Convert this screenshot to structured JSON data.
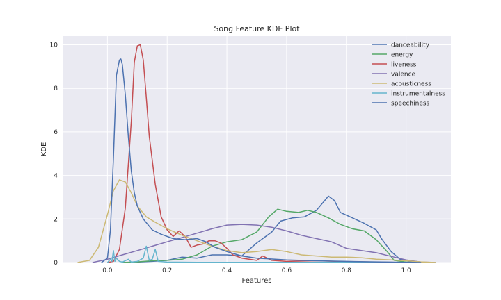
{
  "chart_data": {
    "type": "line",
    "title": "Song Feature KDE Plot",
    "xlabel": "Features",
    "ylabel": "KDE",
    "xlim": [
      -0.15,
      1.15
    ],
    "ylim": [
      0,
      10.4
    ],
    "xticks": [
      0.0,
      0.2,
      0.4,
      0.6,
      0.8,
      1.0
    ],
    "xtick_labels": [
      "0.0",
      "0.2",
      "0.4",
      "0.6",
      "0.8",
      "1.0"
    ],
    "yticks": [
      0,
      2,
      4,
      6,
      8,
      10
    ],
    "ytick_labels": [
      "0",
      "2",
      "4",
      "6",
      "8",
      "10"
    ],
    "grid": true,
    "legend_position": "top-right",
    "background": "#eaeaf2",
    "series": [
      {
        "name": "danceability",
        "color": "#4c72b0",
        "points": [
          [
            0.05,
            0
          ],
          [
            0.1,
            0.02
          ],
          [
            0.15,
            0.05
          ],
          [
            0.2,
            0.1
          ],
          [
            0.25,
            0.25
          ],
          [
            0.3,
            0.2
          ],
          [
            0.35,
            0.35
          ],
          [
            0.4,
            0.35
          ],
          [
            0.45,
            0.3
          ],
          [
            0.5,
            0.9
          ],
          [
            0.55,
            1.4
          ],
          [
            0.58,
            1.9
          ],
          [
            0.62,
            2.05
          ],
          [
            0.66,
            2.1
          ],
          [
            0.7,
            2.4
          ],
          [
            0.74,
            3.05
          ],
          [
            0.76,
            2.85
          ],
          [
            0.78,
            2.3
          ],
          [
            0.82,
            2.05
          ],
          [
            0.86,
            1.8
          ],
          [
            0.9,
            1.5
          ],
          [
            0.92,
            1.05
          ],
          [
            0.95,
            0.5
          ],
          [
            0.98,
            0.15
          ],
          [
            1.02,
            0.02
          ],
          [
            1.05,
            0
          ]
        ]
      },
      {
        "name": "energy",
        "color": "#55a868",
        "points": [
          [
            0.05,
            0
          ],
          [
            0.1,
            0.03
          ],
          [
            0.15,
            0.08
          ],
          [
            0.2,
            0.1
          ],
          [
            0.25,
            0.15
          ],
          [
            0.3,
            0.35
          ],
          [
            0.35,
            0.75
          ],
          [
            0.4,
            0.95
          ],
          [
            0.45,
            1.05
          ],
          [
            0.5,
            1.4
          ],
          [
            0.54,
            2.1
          ],
          [
            0.57,
            2.45
          ],
          [
            0.6,
            2.35
          ],
          [
            0.64,
            2.3
          ],
          [
            0.67,
            2.4
          ],
          [
            0.7,
            2.3
          ],
          [
            0.74,
            2.05
          ],
          [
            0.78,
            1.75
          ],
          [
            0.82,
            1.55
          ],
          [
            0.86,
            1.45
          ],
          [
            0.9,
            1.05
          ],
          [
            0.94,
            0.45
          ],
          [
            0.96,
            0.1
          ],
          [
            1.0,
            0.02
          ],
          [
            1.02,
            0
          ]
        ]
      },
      {
        "name": "liveness",
        "color": "#c44e52",
        "points": [
          [
            0.0,
            0
          ],
          [
            0.02,
            0.05
          ],
          [
            0.04,
            0.6
          ],
          [
            0.06,
            2.5
          ],
          [
            0.08,
            6.5
          ],
          [
            0.09,
            9.2
          ],
          [
            0.1,
            9.95
          ],
          [
            0.11,
            10.0
          ],
          [
            0.12,
            9.3
          ],
          [
            0.13,
            7.6
          ],
          [
            0.14,
            5.8
          ],
          [
            0.16,
            3.6
          ],
          [
            0.18,
            2.1
          ],
          [
            0.2,
            1.5
          ],
          [
            0.22,
            1.2
          ],
          [
            0.24,
            1.45
          ],
          [
            0.26,
            1.2
          ],
          [
            0.28,
            0.7
          ],
          [
            0.3,
            0.8
          ],
          [
            0.32,
            0.85
          ],
          [
            0.34,
            1.0
          ],
          [
            0.36,
            1.0
          ],
          [
            0.38,
            0.9
          ],
          [
            0.4,
            0.65
          ],
          [
            0.42,
            0.35
          ],
          [
            0.45,
            0.2
          ],
          [
            0.5,
            0.1
          ],
          [
            0.52,
            0.3
          ],
          [
            0.55,
            0.1
          ],
          [
            0.6,
            0.05
          ],
          [
            0.7,
            0.08
          ],
          [
            0.8,
            0.04
          ],
          [
            0.9,
            0.02
          ],
          [
            1.0,
            0
          ]
        ]
      },
      {
        "name": "valence",
        "color": "#8172b2",
        "points": [
          [
            -0.05,
            0
          ],
          [
            0.0,
            0.15
          ],
          [
            0.05,
            0.35
          ],
          [
            0.1,
            0.55
          ],
          [
            0.15,
            0.75
          ],
          [
            0.2,
            0.95
          ],
          [
            0.25,
            1.15
          ],
          [
            0.3,
            1.35
          ],
          [
            0.35,
            1.55
          ],
          [
            0.4,
            1.72
          ],
          [
            0.45,
            1.75
          ],
          [
            0.5,
            1.72
          ],
          [
            0.55,
            1.62
          ],
          [
            0.6,
            1.45
          ],
          [
            0.65,
            1.25
          ],
          [
            0.7,
            1.1
          ],
          [
            0.75,
            0.95
          ],
          [
            0.8,
            0.65
          ],
          [
            0.85,
            0.55
          ],
          [
            0.9,
            0.45
          ],
          [
            0.95,
            0.28
          ],
          [
            1.0,
            0.12
          ],
          [
            1.05,
            0.02
          ],
          [
            1.1,
            0
          ]
        ]
      },
      {
        "name": "acousticness",
        "color": "#ccb974",
        "points": [
          [
            -0.1,
            0
          ],
          [
            -0.06,
            0.1
          ],
          [
            -0.03,
            0.7
          ],
          [
            0.0,
            2.2
          ],
          [
            0.02,
            3.3
          ],
          [
            0.04,
            3.8
          ],
          [
            0.06,
            3.7
          ],
          [
            0.08,
            3.2
          ],
          [
            0.1,
            2.6
          ],
          [
            0.13,
            2.1
          ],
          [
            0.16,
            1.85
          ],
          [
            0.2,
            1.55
          ],
          [
            0.25,
            1.25
          ],
          [
            0.3,
            1.0
          ],
          [
            0.35,
            0.75
          ],
          [
            0.4,
            0.55
          ],
          [
            0.45,
            0.45
          ],
          [
            0.5,
            0.5
          ],
          [
            0.55,
            0.6
          ],
          [
            0.6,
            0.5
          ],
          [
            0.65,
            0.35
          ],
          [
            0.7,
            0.3
          ],
          [
            0.75,
            0.25
          ],
          [
            0.8,
            0.25
          ],
          [
            0.85,
            0.22
          ],
          [
            0.9,
            0.15
          ],
          [
            0.95,
            0.12
          ],
          [
            1.0,
            0.08
          ],
          [
            1.05,
            0.03
          ],
          [
            1.1,
            0
          ]
        ]
      },
      {
        "name": "instrumentalness",
        "color": "#64b5cd",
        "points": [
          [
            0.0,
            0
          ],
          [
            0.01,
            0.15
          ],
          [
            0.015,
            0.05
          ],
          [
            0.02,
            0.55
          ],
          [
            0.025,
            0.05
          ],
          [
            0.03,
            0.2
          ],
          [
            0.04,
            0.05
          ],
          [
            0.05,
            0.02
          ],
          [
            0.07,
            0.15
          ],
          [
            0.08,
            0.02
          ],
          [
            0.1,
            0.05
          ],
          [
            0.12,
            0.2
          ],
          [
            0.13,
            0.75
          ],
          [
            0.14,
            0.1
          ],
          [
            0.15,
            0.15
          ],
          [
            0.16,
            0.6
          ],
          [
            0.17,
            0.05
          ],
          [
            0.2,
            0.02
          ],
          [
            0.3,
            0.01
          ],
          [
            0.5,
            0.01
          ],
          [
            0.7,
            0.01
          ],
          [
            0.9,
            0.02
          ],
          [
            1.0,
            0
          ]
        ]
      },
      {
        "name": "speechiness",
        "color": "#4c72b0",
        "points": [
          [
            -0.02,
            0
          ],
          [
            0.0,
            0.2
          ],
          [
            0.01,
            1.5
          ],
          [
            0.02,
            4.8
          ],
          [
            0.03,
            8.6
          ],
          [
            0.04,
            9.3
          ],
          [
            0.045,
            9.35
          ],
          [
            0.05,
            9.1
          ],
          [
            0.06,
            7.7
          ],
          [
            0.07,
            5.8
          ],
          [
            0.08,
            4.2
          ],
          [
            0.09,
            3.2
          ],
          [
            0.1,
            2.6
          ],
          [
            0.12,
            2.0
          ],
          [
            0.15,
            1.5
          ],
          [
            0.18,
            1.3
          ],
          [
            0.22,
            1.1
          ],
          [
            0.26,
            1.05
          ],
          [
            0.3,
            1.1
          ],
          [
            0.33,
            0.95
          ],
          [
            0.36,
            0.7
          ],
          [
            0.4,
            0.5
          ],
          [
            0.45,
            0.3
          ],
          [
            0.5,
            0.2
          ],
          [
            0.6,
            0.12
          ],
          [
            0.7,
            0.08
          ],
          [
            0.8,
            0.05
          ],
          [
            0.9,
            0.03
          ],
          [
            1.0,
            0.01
          ],
          [
            1.05,
            0
          ]
        ]
      }
    ]
  }
}
